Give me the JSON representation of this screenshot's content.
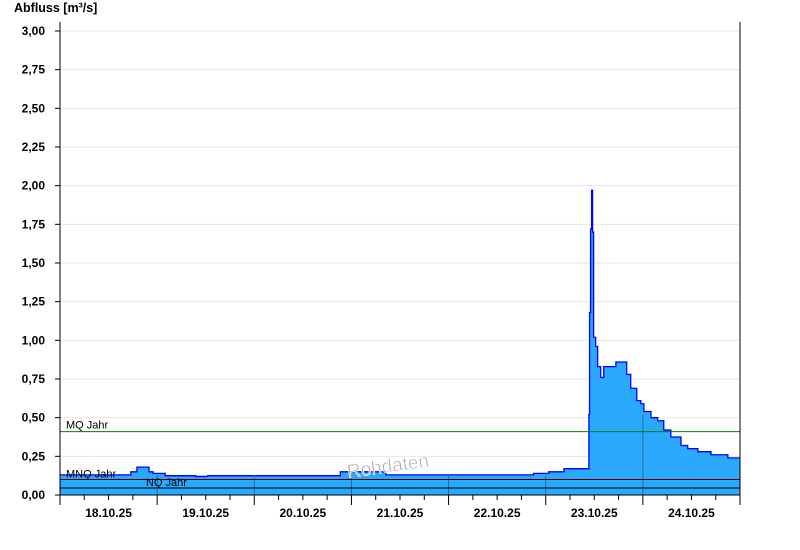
{
  "chart_data": {
    "type": "area",
    "title": "",
    "ylabel": "Abfluss [m³/s]",
    "xlabel": "",
    "ylim": [
      0,
      3
    ],
    "xlim": [
      "2025-10-18T00:00",
      "2025-10-25T00:00"
    ],
    "yticks": [
      "0,00",
      "0,25",
      "0,50",
      "0,75",
      "1,00",
      "1,25",
      "1,50",
      "1,75",
      "2,00",
      "2,25",
      "2,50",
      "2,75",
      "3,00"
    ],
    "xtick_labels": [
      "18.10.25",
      "19.10.25",
      "20.10.25",
      "21.10.25",
      "22.10.25",
      "23.10.25",
      "24.10.25"
    ],
    "grid": true,
    "colors": {
      "fill": "#2aa9fd",
      "line": "#0000ff",
      "mq": "#008000",
      "ref": "#000000",
      "grid": "#e6e6e6"
    },
    "series": [
      {
        "points": [
          [
            "2025-10-18T00:00",
            0.13
          ],
          [
            "2025-10-18T16:00",
            0.13
          ],
          [
            "2025-10-18T17:30",
            0.15
          ],
          [
            "2025-10-18T19:00",
            0.18
          ],
          [
            "2025-10-18T20:00",
            0.18
          ],
          [
            "2025-10-18T22:00",
            0.15
          ],
          [
            "2025-10-18T23:00",
            0.14
          ],
          [
            "2025-10-19T02:00",
            0.125
          ],
          [
            "2025-10-19T09:30",
            0.12
          ],
          [
            "2025-10-19T12:30",
            0.125
          ],
          [
            "2025-10-20T20:15",
            0.125
          ],
          [
            "2025-10-20T21:15",
            0.15
          ],
          [
            "2025-10-21T08:30",
            0.13
          ],
          [
            "2025-10-22T20:15",
            0.13
          ],
          [
            "2025-10-22T21:00",
            0.14
          ],
          [
            "2025-10-23T00:45",
            0.15
          ],
          [
            "2025-10-23T04:30",
            0.17
          ],
          [
            "2025-10-23T10:30",
            0.17
          ],
          [
            "2025-10-23T10:40",
            0.52
          ],
          [
            "2025-10-23T10:50",
            1.18
          ],
          [
            "2025-10-23T11:05",
            1.72
          ],
          [
            "2025-10-23T11:20",
            1.97
          ],
          [
            "2025-10-23T11:35",
            1.7
          ],
          [
            "2025-10-23T11:50",
            1.02
          ],
          [
            "2025-10-23T12:20",
            0.96
          ],
          [
            "2025-10-23T12:50",
            0.83
          ],
          [
            "2025-10-23T13:35",
            0.76
          ],
          [
            "2025-10-23T14:20",
            0.83
          ],
          [
            "2025-10-23T16:50",
            0.83
          ],
          [
            "2025-10-23T17:20",
            0.86
          ],
          [
            "2025-10-23T18:35",
            0.86
          ],
          [
            "2025-10-23T20:00",
            0.78
          ],
          [
            "2025-10-23T21:00",
            0.69
          ],
          [
            "2025-10-23T22:30",
            0.61
          ],
          [
            "2025-10-23T23:30",
            0.59
          ],
          [
            "2025-10-24T00:15",
            0.54
          ],
          [
            "2025-10-24T02:00",
            0.5
          ],
          [
            "2025-10-24T03:40",
            0.48
          ],
          [
            "2025-10-24T05:10",
            0.42
          ],
          [
            "2025-10-24T06:55",
            0.375
          ],
          [
            "2025-10-24T09:25",
            0.32
          ],
          [
            "2025-10-24T11:05",
            0.3
          ],
          [
            "2025-10-24T13:35",
            0.28
          ],
          [
            "2025-10-24T16:50",
            0.26
          ],
          [
            "2025-10-24T21:00",
            0.24
          ],
          [
            "2025-10-25T00:00",
            0.24
          ]
        ]
      }
    ],
    "reference_lines": [
      {
        "label": "MQ Jahr",
        "value": 0.41,
        "color": "#008000"
      },
      {
        "label": "MNQ Jahr",
        "value": 0.1,
        "color": "#000000"
      },
      {
        "label": "NQ Jahr",
        "value": 0.045,
        "color": "#000000"
      }
    ],
    "watermark": "Rohdaten"
  }
}
